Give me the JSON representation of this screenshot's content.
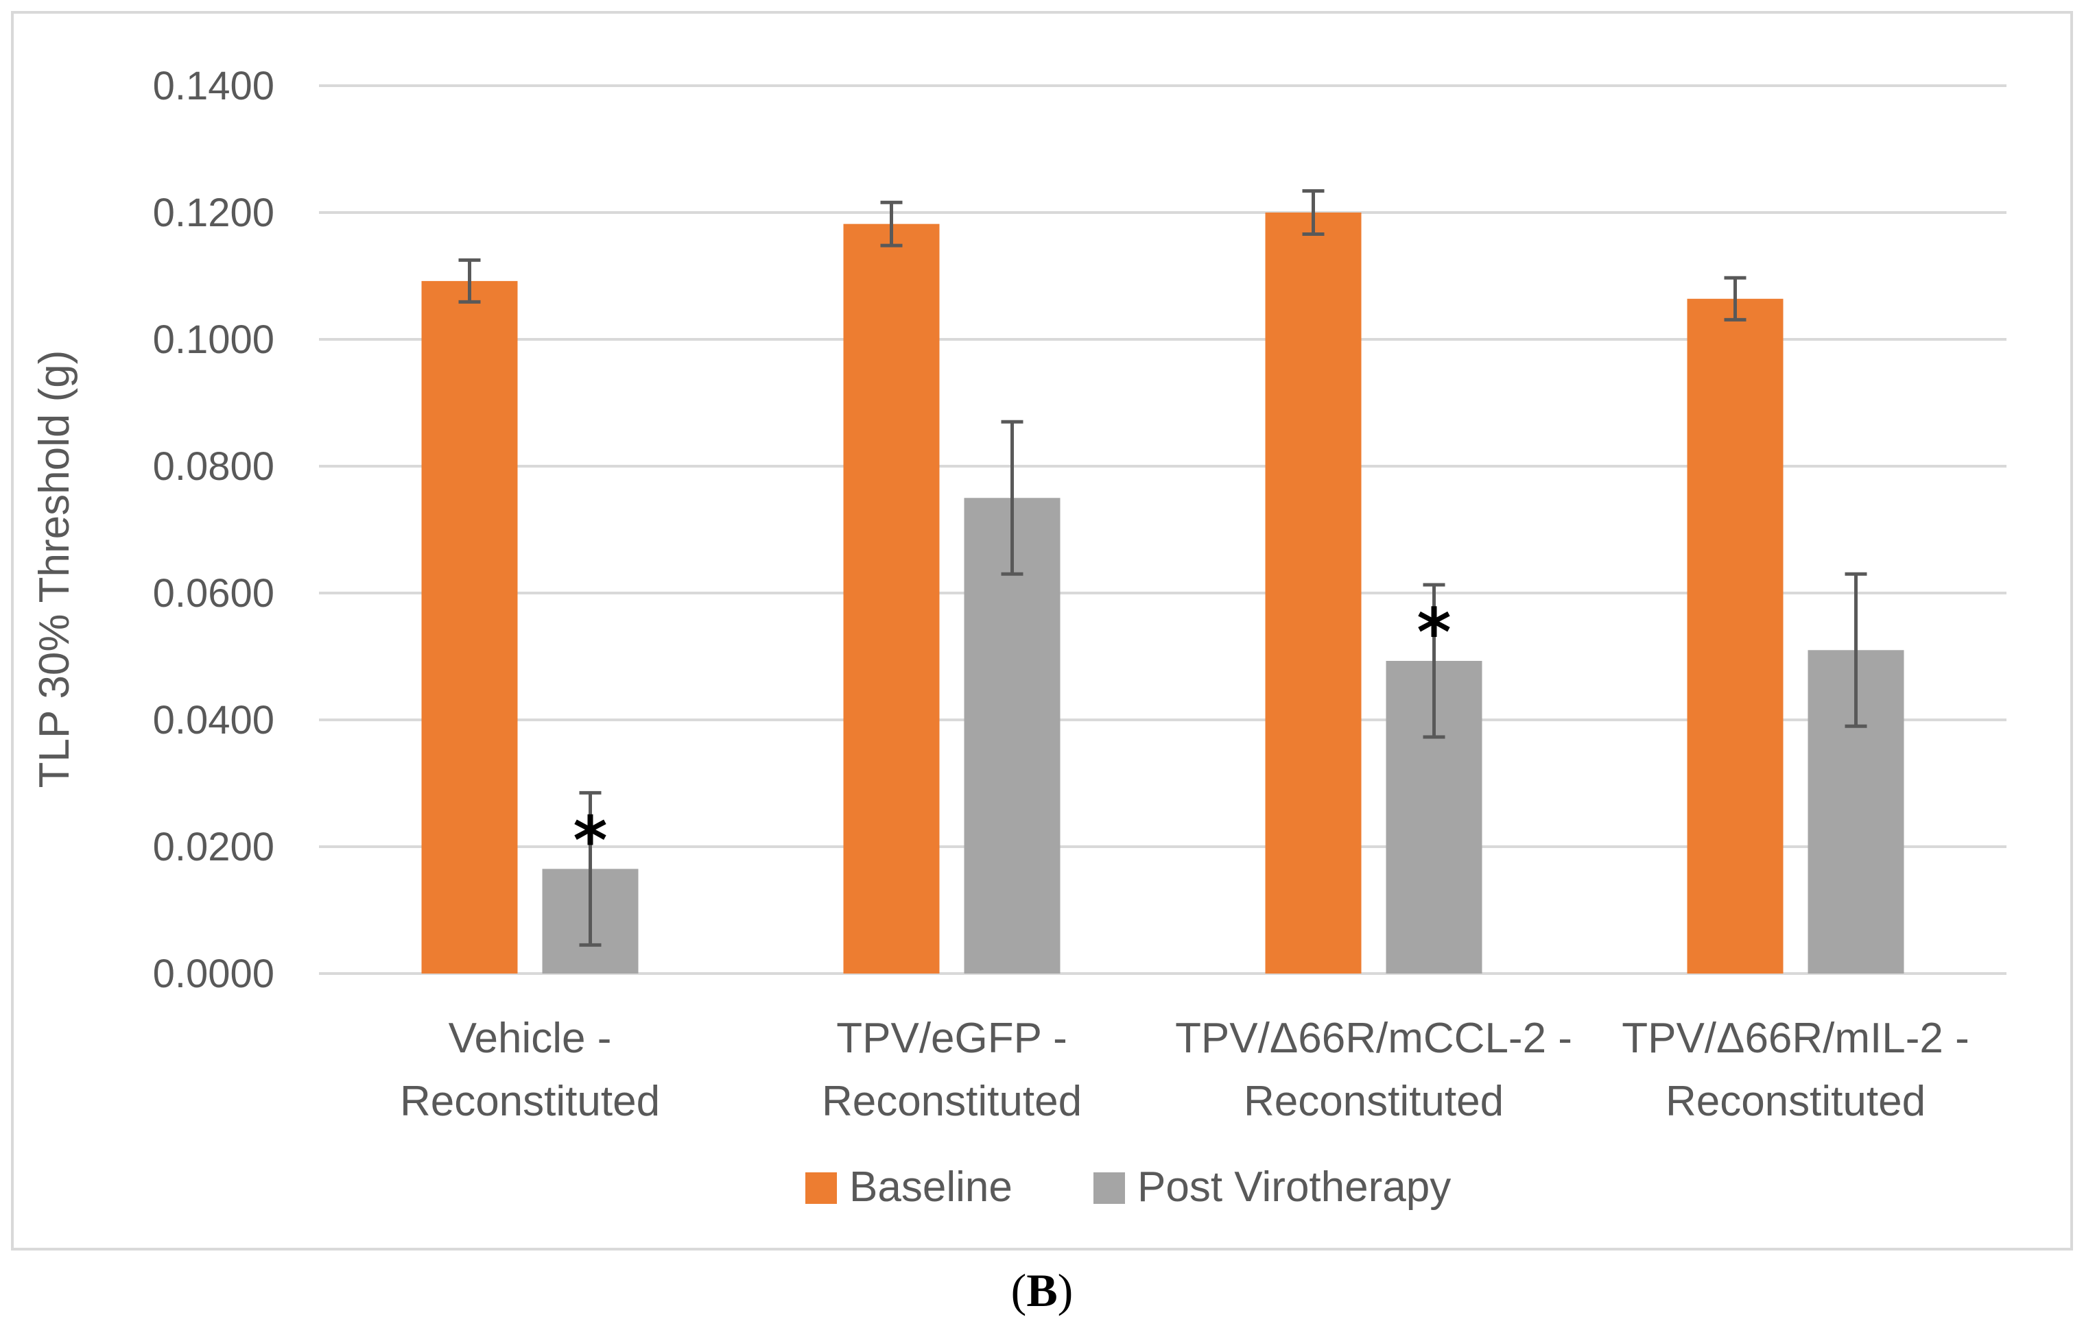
{
  "chart_data": {
    "type": "bar",
    "title": "",
    "xlabel": "",
    "ylabel": "TLP 30% Threshold (g)",
    "ylim": [
      0,
      0.14
    ],
    "yticks": [
      "0.0000",
      "0.0200",
      "0.0400",
      "0.0600",
      "0.0800",
      "0.1000",
      "0.1200",
      "0.1400"
    ],
    "grid": true,
    "categories": [
      [
        "Vehicle -",
        "Reconstituted"
      ],
      [
        "TPV/eGFP -",
        "Reconstituted"
      ],
      [
        "TPV/Δ66R/mCCL-2 -",
        "Reconstituted"
      ],
      [
        "TPV/Δ66R/mIL-2 -",
        "Reconstituted"
      ]
    ],
    "series": [
      {
        "name": "Baseline",
        "color": "#ED7D31",
        "values": [
          0.1092,
          0.1182,
          0.12,
          0.1064
        ],
        "errors": [
          0.0033,
          0.0034,
          0.0034,
          0.0033
        ]
      },
      {
        "name": "Post Virotherapy",
        "color": "#A5A5A5",
        "values": [
          0.0165,
          0.075,
          0.0493,
          0.051
        ],
        "errors": [
          0.012,
          0.012,
          0.012,
          0.012
        ]
      }
    ],
    "annotations": [
      {
        "text": "*",
        "series": 1,
        "category": 0
      },
      {
        "text": "*",
        "series": 1,
        "category": 2
      }
    ],
    "legend_position": "bottom",
    "panel_label": {
      "open": "(",
      "letter": "B",
      "close": ")"
    }
  }
}
